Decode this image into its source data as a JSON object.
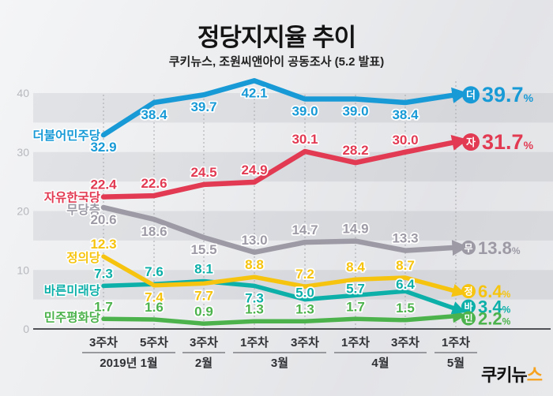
{
  "header": {
    "title": "정당지지율 추이",
    "subtitle": "쿠키뉴스, 조원씨앤아이 공동조사 (5.2 발표)"
  },
  "logo": {
    "text_black": "쿠키뉴",
    "text_accent": "스",
    "accent_color": "#f6a21e"
  },
  "chart_data": {
    "type": "line",
    "title": "정당지지율 추이",
    "subtitle": "쿠키뉴스, 조원씨앤아이 공동조사 (5.2 발표)",
    "ylim": [
      0,
      40
    ],
    "yticks": [
      0,
      10,
      20,
      30,
      40
    ],
    "grid": "alternating 5-unit horizontal gray bands, dotted vertical guide at each survey point",
    "legend_position": "left-of-first-point and right-end badges",
    "categories": [
      "3주차",
      "5주차",
      "3주차",
      "1주차",
      "3주차",
      "1주차",
      "3주차",
      "1주차"
    ],
    "month_groups": [
      {
        "label": "2019년 1월",
        "start": 0,
        "end": 1
      },
      {
        "label": "2월",
        "start": 2,
        "end": 2
      },
      {
        "label": "3월",
        "start": 3,
        "end": 4
      },
      {
        "label": "4월",
        "start": 5,
        "end": 6
      },
      {
        "label": "5월",
        "start": 7,
        "end": 7
      }
    ],
    "series": [
      {
        "name": "더불어민주당",
        "badge": "더",
        "color": "#189ad6",
        "values": [
          32.9,
          38.4,
          39.7,
          42.1,
          39.0,
          39.0,
          38.4,
          39.7
        ],
        "final_label": "39.7",
        "unit": "%",
        "label_side": [
          "below",
          "below",
          "below",
          "below",
          "below",
          "below",
          "below"
        ]
      },
      {
        "name": "자유한국당",
        "badge": "자",
        "color": "#e23a52",
        "values": [
          22.4,
          22.6,
          24.5,
          24.9,
          30.1,
          28.2,
          30.0,
          31.7
        ],
        "final_label": "31.7",
        "unit": "%",
        "label_side": [
          "above",
          "above",
          "above",
          "above",
          "above",
          "above",
          "above"
        ]
      },
      {
        "name": "무당층",
        "badge": "무",
        "color": "#9d9aa5",
        "values": [
          20.6,
          18.6,
          15.5,
          13.0,
          14.7,
          14.9,
          13.3,
          13.8
        ],
        "final_label": "13.8",
        "unit": "%",
        "label_side": [
          "below",
          "below",
          "below",
          "above",
          "above",
          "above",
          "above"
        ]
      },
      {
        "name": "정의당",
        "badge": "정",
        "color": "#f6c40f",
        "values": [
          12.3,
          7.4,
          7.7,
          8.8,
          7.2,
          8.4,
          8.7,
          6.4
        ],
        "final_label": "6.4",
        "unit": "%",
        "label_side": [
          "above",
          "below",
          "below",
          "above",
          "above",
          "above",
          "above"
        ]
      },
      {
        "name": "바른미래당",
        "badge": "바",
        "color": "#0dafa9",
        "values": [
          7.3,
          7.6,
          8.1,
          7.3,
          5.0,
          5.7,
          6.4,
          3.4
        ],
        "final_label": "3.4",
        "unit": "%",
        "label_side": [
          "above",
          "above",
          "above",
          "below",
          "near",
          "near",
          "near"
        ]
      },
      {
        "name": "민주평화당",
        "badge": "민",
        "color": "#4cb34c",
        "values": [
          1.7,
          1.6,
          0.9,
          1.3,
          1.3,
          1.7,
          1.5,
          2.2
        ],
        "final_label": "2.2",
        "unit": "%",
        "label_side": [
          "above",
          "above",
          "above",
          "above",
          "above",
          "above",
          "above"
        ]
      }
    ]
  }
}
